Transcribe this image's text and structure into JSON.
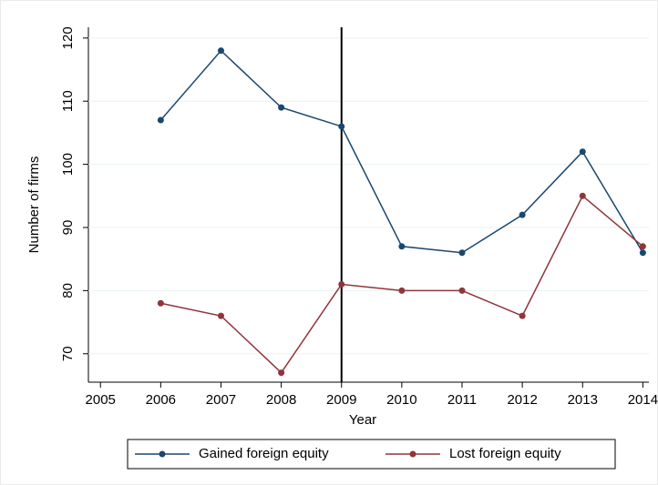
{
  "chart_data": {
    "type": "line",
    "x_label": "Year",
    "y_label": "Number of firms",
    "x": [
      2006,
      2007,
      2008,
      2009,
      2010,
      2011,
      2012,
      2013,
      2014
    ],
    "series": [
      {
        "name": "Gained foreign equity",
        "color": "#1a476f",
        "values": [
          107,
          118,
          109,
          106,
          87,
          86,
          92,
          102,
          86
        ]
      },
      {
        "name": "Lost foreign equity",
        "color": "#90353b",
        "values": [
          78,
          76,
          67,
          81,
          80,
          80,
          76,
          95,
          87
        ]
      }
    ],
    "xlim": [
      2004.8,
      2014.1
    ],
    "xticks": [
      2005,
      2006,
      2007,
      2008,
      2009,
      2010,
      2011,
      2012,
      2013,
      2014
    ],
    "ylim": [
      65.5,
      121.7
    ],
    "yticks": [
      70,
      80,
      90,
      100,
      110,
      120
    ],
    "vline": 2009,
    "legend": "bottom"
  }
}
